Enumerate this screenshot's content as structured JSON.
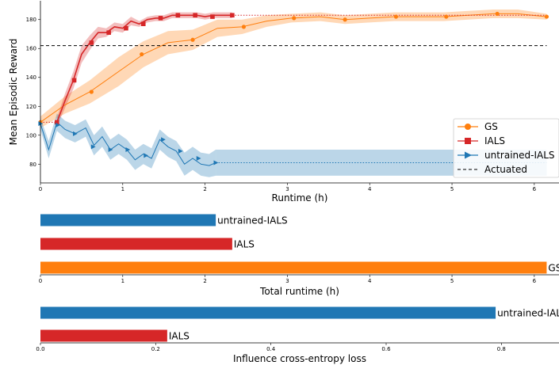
{
  "colors": {
    "GS": "#ff7f0e",
    "IALS": "#d62728",
    "untrained-IALS": "#1f77b4",
    "Actuated": "#000000"
  },
  "chart_data": [
    {
      "type": "line",
      "xlabel": "Runtime (h)",
      "ylabel": "Mean Episodic Reward",
      "xlim": [
        0,
        6.3
      ],
      "ylim": [
        67,
        193
      ],
      "xticks": [
        0,
        1,
        2,
        3,
        4,
        5,
        6
      ],
      "yticks": [
        80,
        100,
        120,
        140,
        160,
        180
      ],
      "legend_position": "right",
      "series": [
        {
          "name": "GS",
          "marker": "circle",
          "x": [
            0,
            0.3,
            0.6,
            0.95,
            1.25,
            1.55,
            1.85,
            2.15,
            2.45,
            2.75,
            3.05,
            3.4,
            3.7,
            4.0,
            4.3,
            4.6,
            4.9,
            5.2,
            5.5,
            5.8,
            6.15
          ],
          "y": [
            109,
            121,
            130,
            144,
            156,
            164,
            166,
            174,
            175,
            179,
            181,
            182,
            180,
            181,
            182,
            182,
            182,
            183,
            184,
            184,
            182
          ],
          "band": [
            4,
            6,
            8,
            10,
            9,
            8,
            7,
            6,
            5,
            4,
            3,
            3,
            3,
            3,
            3,
            3,
            3,
            3,
            3,
            3,
            2
          ],
          "marker_x": [
            0,
            0.62,
            1.23,
            1.85,
            2.47,
            3.08,
            3.7,
            4.32,
            4.93,
            5.55,
            6.15
          ],
          "marker_y": [
            109,
            130,
            156,
            166,
            175,
            181,
            180,
            182,
            182,
            184,
            182
          ]
        },
        {
          "name": "IALS",
          "marker": "square",
          "x": [
            0.2,
            0.3,
            0.4,
            0.5,
            0.6,
            0.7,
            0.8,
            0.9,
            1.0,
            1.1,
            1.2,
            1.3,
            1.4,
            1.5,
            1.6,
            1.7,
            1.8,
            1.9,
            2.0,
            2.1,
            2.2,
            2.33
          ],
          "y": [
            109,
            124,
            138,
            156,
            164,
            171,
            171,
            175,
            174,
            179,
            177,
            180,
            181,
            181,
            183,
            183,
            183,
            183,
            182,
            183,
            183,
            183
          ],
          "band": [
            3,
            5,
            6,
            6,
            5,
            4,
            3,
            3,
            3,
            3,
            2,
            2,
            2,
            2,
            2,
            2,
            2,
            2,
            2,
            2,
            2,
            2
          ],
          "marker_x": [
            0.2,
            0.41,
            0.62,
            0.83,
            1.04,
            1.25,
            1.46,
            1.67,
            1.88,
            2.09,
            2.33
          ],
          "marker_y": [
            109,
            138,
            164,
            171,
            174,
            177,
            181,
            183,
            183,
            182,
            183
          ],
          "continuation": {
            "x_end": 6.15,
            "y": 183
          },
          "pre_segment": {
            "x_start": 0,
            "y": 109
          }
        },
        {
          "name": "untrained-IALS",
          "marker": "triangle-right",
          "x": [
            0,
            0.1,
            0.2,
            0.3,
            0.42,
            0.55,
            0.65,
            0.75,
            0.85,
            0.95,
            1.05,
            1.15,
            1.25,
            1.35,
            1.45,
            1.55,
            1.65,
            1.75,
            1.85,
            1.95,
            2.05,
            2.13
          ],
          "y": [
            108,
            90,
            109,
            104,
            101,
            105,
            93,
            99,
            90,
            94,
            90,
            83,
            87,
            84,
            97,
            92,
            89,
            80,
            84,
            80,
            79,
            81
          ],
          "band": [
            4,
            6,
            6,
            6,
            6,
            6,
            7,
            7,
            7,
            7,
            7,
            7,
            7,
            7,
            7,
            7,
            7,
            8,
            8,
            8,
            8,
            9
          ],
          "marker_x": [
            0,
            0.21,
            0.42,
            0.64,
            0.85,
            1.06,
            1.28,
            1.49,
            1.7,
            1.92,
            2.13
          ],
          "marker_y": [
            108,
            107,
            101,
            92,
            90,
            90,
            86,
            97,
            89,
            84,
            81
          ],
          "continuation": {
            "x_end": 6.15,
            "y": 81,
            "band": 9
          }
        },
        {
          "name": "Actuated",
          "style": "dashed",
          "x": [
            0,
            6.15
          ],
          "y": [
            162,
            162
          ]
        }
      ]
    },
    {
      "type": "bar",
      "orientation": "horizontal",
      "xlabel": "Total runtime (h)",
      "xlim": [
        0,
        6.3
      ],
      "xticks": [
        0,
        1,
        2,
        3,
        4,
        5,
        6
      ],
      "categories": [
        "untrained-IALS",
        "IALS",
        "GS"
      ],
      "values": [
        2.13,
        2.33,
        6.15
      ]
    },
    {
      "type": "bar",
      "orientation": "horizontal",
      "xlabel": "Influence cross-entropy loss",
      "xlim": [
        0,
        0.9
      ],
      "xticks": [
        0.0,
        0.2,
        0.4,
        0.6,
        0.8
      ],
      "tick_labels": [
        "0.0",
        "0.2",
        "0.4",
        "0.6",
        "0.8"
      ],
      "categories": [
        "untrained-IALS",
        "IALS"
      ],
      "values": [
        0.79,
        0.22
      ]
    }
  ]
}
